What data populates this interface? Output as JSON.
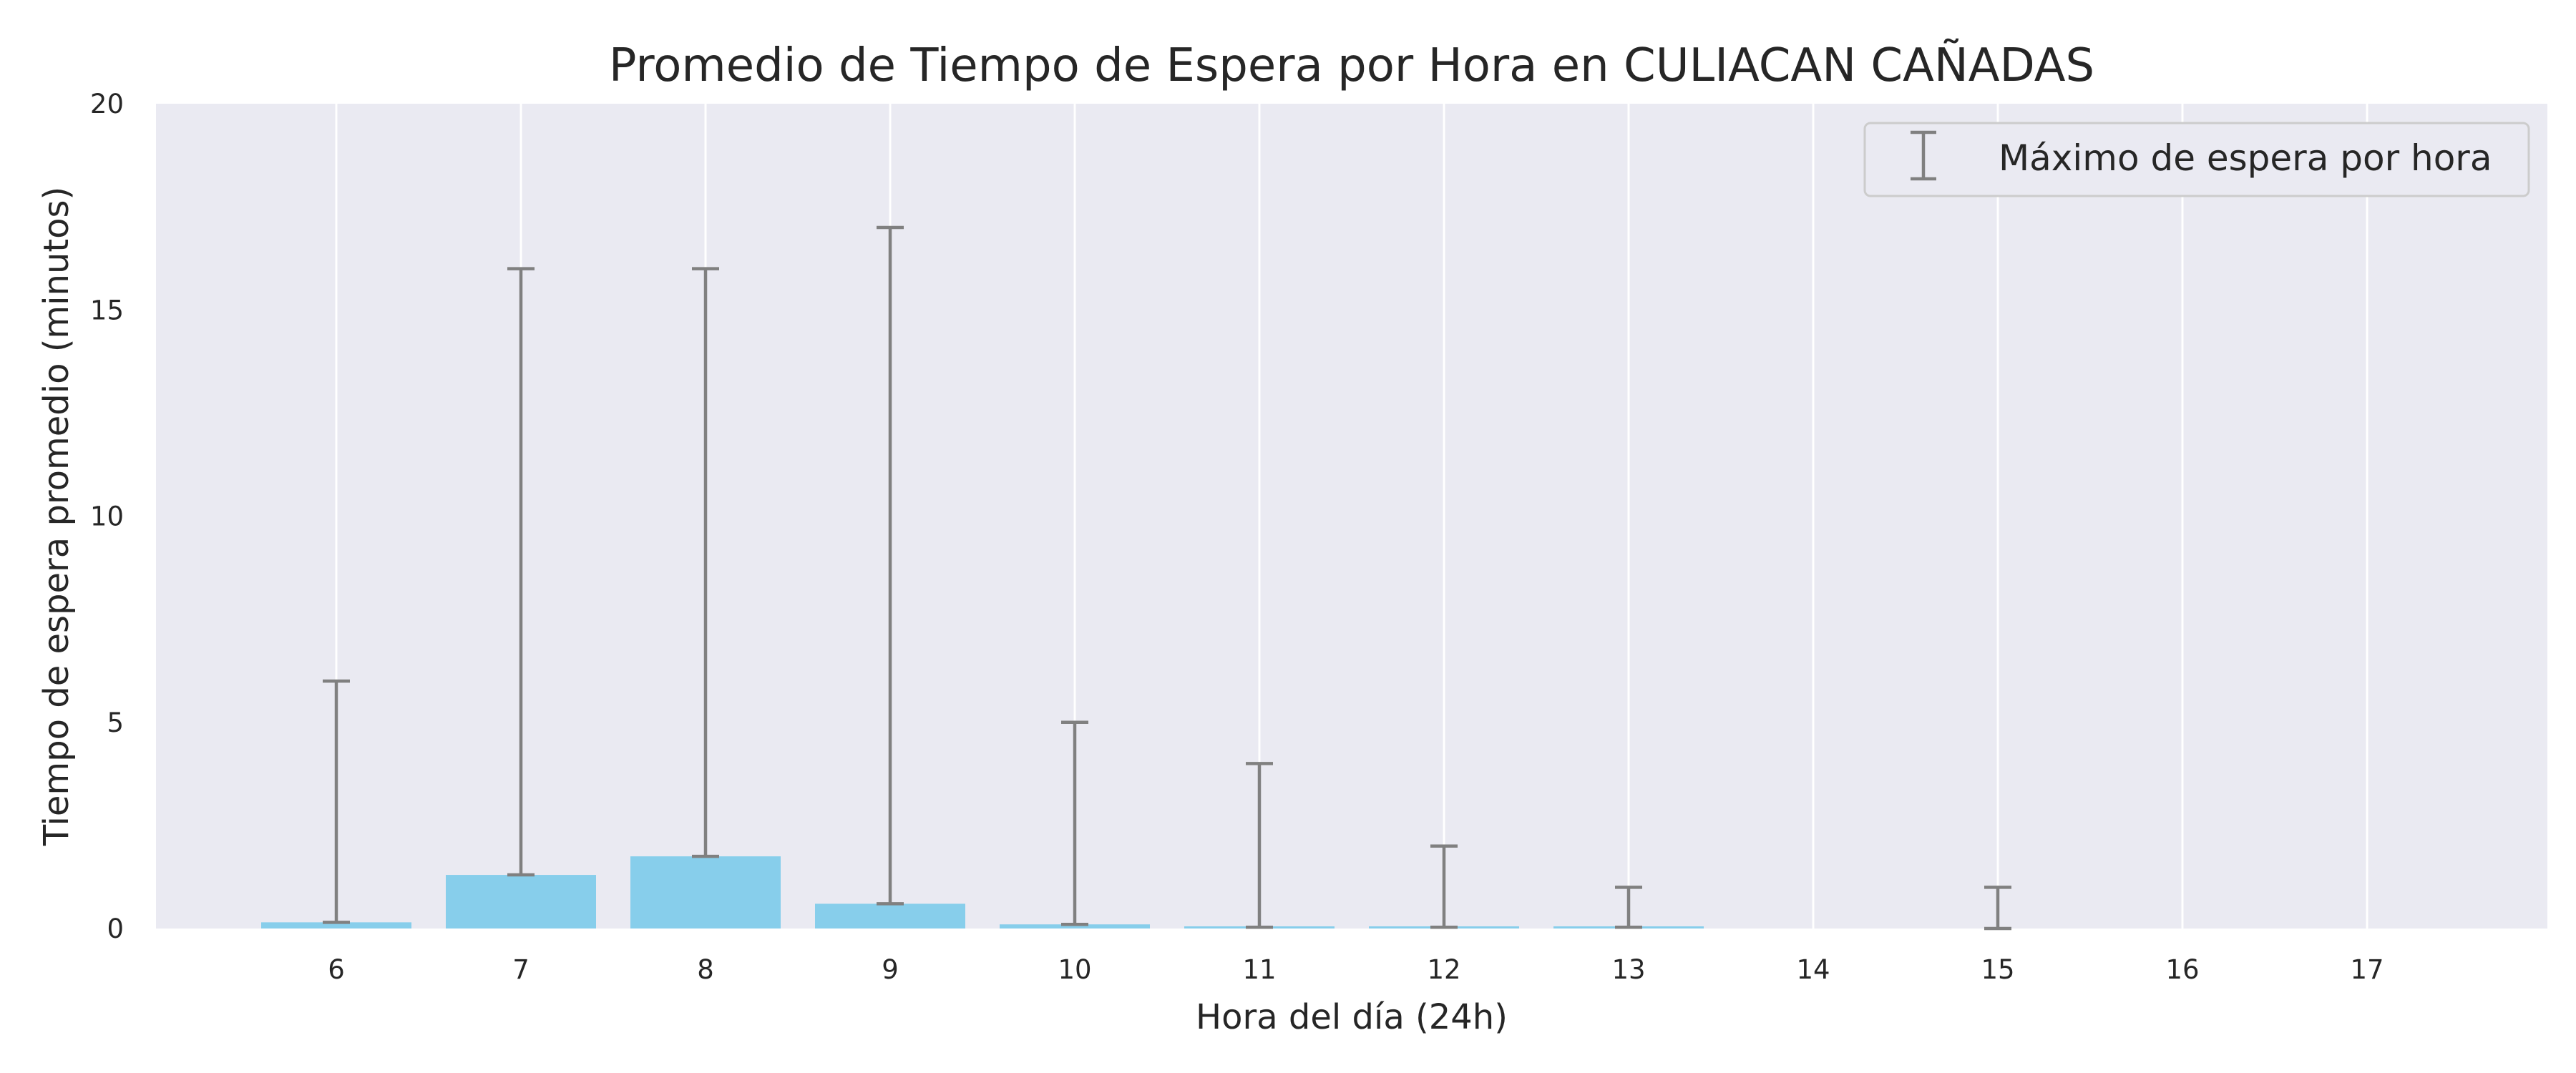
{
  "chart_data": {
    "type": "bar",
    "title": "Promedio de Tiempo de Espera por Hora en CULIACAN CAÑADAS",
    "xlabel": "Hora del día (24h)",
    "ylabel": "Tiempo de espera promedio (minutos)",
    "categories": [
      "6",
      "7",
      "8",
      "9",
      "10",
      "11",
      "12",
      "13",
      "14",
      "15",
      "16",
      "17"
    ],
    "series": [
      {
        "values": [
          0.15,
          1.3,
          1.75,
          0.6,
          0.1,
          0.03,
          0.03,
          0.03,
          0,
          0,
          0,
          0
        ],
        "max": [
          6,
          16,
          16,
          17,
          5,
          4,
          2,
          1,
          0,
          1,
          0,
          0
        ]
      }
    ],
    "ylim": [
      0,
      20
    ],
    "yticks": [
      0,
      5,
      10,
      15,
      20
    ],
    "grid": "vertical",
    "legend": {
      "position": "top-right",
      "entries": [
        "Máximo de espera por hora"
      ]
    },
    "colors": {
      "bar": "#87ceeb",
      "errorbar": "#808080",
      "background": "#eaeaf2",
      "grid": "#ffffff"
    }
  }
}
